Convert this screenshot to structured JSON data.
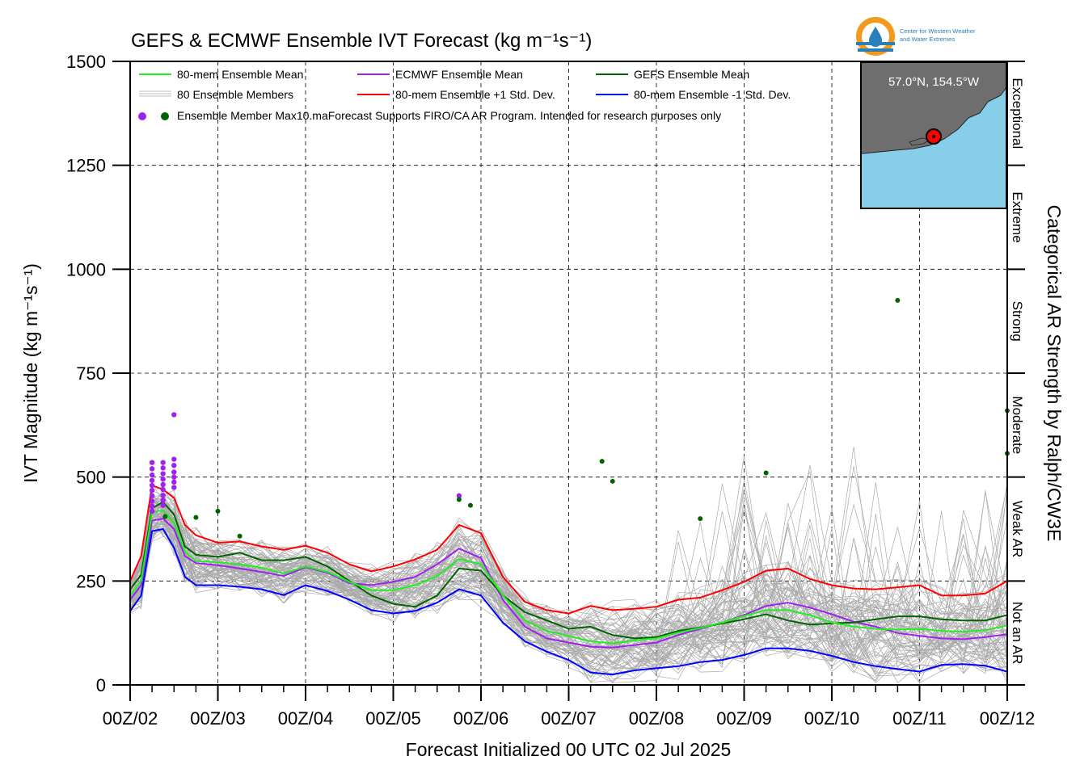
{
  "colors": {
    "ensemble_mean": "#22ee22",
    "ecmwf_mean": "#a020f0",
    "gefs_mean": "#006400",
    "plus_std": "#ff0000",
    "minus_std": "#0000ff",
    "members": "#aaaaaa",
    "gefs_max": "#006400",
    "ecmwf_max": "#a020f0",
    "ocean": "#87ceeb",
    "land": "#6e6e6e",
    "logo_orange": "#f39a1e",
    "logo_blue": "#2a7fb8"
  },
  "chart_data": {
    "type": "line",
    "title": "GEFS & ECMWF Ensemble IVT Forecast (kg m⁻¹s⁻¹)",
    "xlabel": "Forecast Initialized 00 UTC 02 Jul 2025",
    "ylabel": "IVT Magnitude (kg m⁻¹s⁻¹)",
    "right_ylabel": "Categorical AR Strength by Ralph/CW3E",
    "x_unit": "days since 00Z/02",
    "xlim": [
      0,
      10
    ],
    "ylim": [
      0,
      1500
    ],
    "x_ticks": [
      {
        "x": 0,
        "label": "00Z/02"
      },
      {
        "x": 1,
        "label": "00Z/03"
      },
      {
        "x": 2,
        "label": "00Z/04"
      },
      {
        "x": 3,
        "label": "00Z/05"
      },
      {
        "x": 4,
        "label": "00Z/06"
      },
      {
        "x": 5,
        "label": "00Z/07"
      },
      {
        "x": 6,
        "label": "00Z/08"
      },
      {
        "x": 7,
        "label": "00Z/09"
      },
      {
        "x": 8,
        "label": "00Z/10"
      },
      {
        "x": 9,
        "label": "00Z/11"
      },
      {
        "x": 10,
        "label": "00Z/12"
      }
    ],
    "y_ticks": [
      0,
      250,
      500,
      750,
      1000,
      1250,
      1500
    ],
    "categories": [
      {
        "label": "Not an AR",
        "from": 0,
        "to": 250
      },
      {
        "label": "Weak AR",
        "from": 250,
        "to": 500
      },
      {
        "label": "Moderate",
        "from": 500,
        "to": 750
      },
      {
        "label": "Strong",
        "from": 750,
        "to": 1000
      },
      {
        "label": "Extreme",
        "from": 1000,
        "to": 1250
      },
      {
        "label": "Exceptional",
        "from": 1250,
        "to": 1500
      }
    ],
    "grid": true,
    "legend_position": "top-left",
    "series": [
      {
        "name": "80-mem Ensemble Mean",
        "color_key": "ensemble_mean",
        "points": [
          [
            0,
            215
          ],
          [
            0.125,
            250
          ],
          [
            0.25,
            415
          ],
          [
            0.375,
            420
          ],
          [
            0.5,
            390
          ],
          [
            0.625,
            320
          ],
          [
            0.75,
            298
          ],
          [
            1,
            295
          ],
          [
            1.25,
            290
          ],
          [
            1.5,
            282
          ],
          [
            1.75,
            268
          ],
          [
            2,
            285
          ],
          [
            2.25,
            272
          ],
          [
            2.5,
            248
          ],
          [
            2.75,
            228
          ],
          [
            3,
            228
          ],
          [
            3.25,
            240
          ],
          [
            3.5,
            262
          ],
          [
            3.75,
            303
          ],
          [
            4,
            290
          ],
          [
            4.25,
            215
          ],
          [
            4.5,
            155
          ],
          [
            4.75,
            130
          ],
          [
            5,
            118
          ],
          [
            5.25,
            105
          ],
          [
            5.5,
            100
          ],
          [
            5.75,
            107
          ],
          [
            6,
            112
          ],
          [
            6.25,
            126
          ],
          [
            6.5,
            137
          ],
          [
            6.75,
            150
          ],
          [
            7,
            166
          ],
          [
            7.25,
            180
          ],
          [
            7.5,
            180
          ],
          [
            7.75,
            168
          ],
          [
            8,
            150
          ],
          [
            8.25,
            140
          ],
          [
            8.5,
            135
          ],
          [
            8.75,
            133
          ],
          [
            9,
            135
          ],
          [
            9.25,
            130
          ],
          [
            9.5,
            128
          ],
          [
            9.75,
            132
          ],
          [
            10,
            143
          ]
        ]
      },
      {
        "name": "ECMWF Ensemble Mean",
        "color_key": "ecmwf_mean",
        "points": [
          [
            0,
            205
          ],
          [
            0.125,
            240
          ],
          [
            0.25,
            395
          ],
          [
            0.375,
            400
          ],
          [
            0.5,
            375
          ],
          [
            0.625,
            310
          ],
          [
            0.75,
            293
          ],
          [
            1,
            288
          ],
          [
            1.25,
            280
          ],
          [
            1.5,
            272
          ],
          [
            1.75,
            262
          ],
          [
            2,
            283
          ],
          [
            2.25,
            270
          ],
          [
            2.5,
            245
          ],
          [
            2.75,
            240
          ],
          [
            3,
            248
          ],
          [
            3.25,
            260
          ],
          [
            3.5,
            290
          ],
          [
            3.75,
            328
          ],
          [
            4,
            305
          ],
          [
            4.25,
            205
          ],
          [
            4.5,
            140
          ],
          [
            4.75,
            112
          ],
          [
            5,
            102
          ],
          [
            5.25,
            92
          ],
          [
            5.5,
            90
          ],
          [
            5.75,
            96
          ],
          [
            6,
            102
          ],
          [
            6.25,
            120
          ],
          [
            6.5,
            135
          ],
          [
            6.75,
            150
          ],
          [
            7,
            168
          ],
          [
            7.25,
            190
          ],
          [
            7.5,
            198
          ],
          [
            7.75,
            186
          ],
          [
            8,
            170
          ],
          [
            8.25,
            152
          ],
          [
            8.5,
            140
          ],
          [
            8.75,
            125
          ],
          [
            9,
            118
          ],
          [
            9.25,
            112
          ],
          [
            9.5,
            110
          ],
          [
            9.75,
            115
          ],
          [
            10,
            122
          ]
        ]
      },
      {
        "name": "GEFS Ensemble Mean",
        "color_key": "gefs_mean",
        "points": [
          [
            0,
            230
          ],
          [
            0.125,
            265
          ],
          [
            0.25,
            425
          ],
          [
            0.375,
            440
          ],
          [
            0.5,
            410
          ],
          [
            0.625,
            333
          ],
          [
            0.75,
            313
          ],
          [
            1,
            308
          ],
          [
            1.25,
            318
          ],
          [
            1.5,
            300
          ],
          [
            1.75,
            300
          ],
          [
            2,
            308
          ],
          [
            2.25,
            285
          ],
          [
            2.5,
            250
          ],
          [
            2.75,
            215
          ],
          [
            3,
            195
          ],
          [
            3.25,
            188
          ],
          [
            3.5,
            215
          ],
          [
            3.75,
            280
          ],
          [
            4,
            275
          ],
          [
            4.25,
            215
          ],
          [
            4.5,
            175
          ],
          [
            4.75,
            155
          ],
          [
            5,
            135
          ],
          [
            5.25,
            140
          ],
          [
            5.5,
            120
          ],
          [
            5.75,
            112
          ],
          [
            6,
            115
          ],
          [
            6.25,
            130
          ],
          [
            6.5,
            138
          ],
          [
            6.75,
            148
          ],
          [
            7,
            158
          ],
          [
            7.25,
            170
          ],
          [
            7.5,
            155
          ],
          [
            7.75,
            145
          ],
          [
            8,
            148
          ],
          [
            8.25,
            150
          ],
          [
            8.5,
            158
          ],
          [
            8.75,
            165
          ],
          [
            9,
            165
          ],
          [
            9.25,
            158
          ],
          [
            9.5,
            155
          ],
          [
            9.75,
            155
          ],
          [
            10,
            168
          ]
        ]
      },
      {
        "name": "80-mem Ensemble +1 Std. Dev.",
        "color_key": "plus_std",
        "points": [
          [
            0,
            250
          ],
          [
            0.125,
            310
          ],
          [
            0.25,
            480
          ],
          [
            0.375,
            470
          ],
          [
            0.5,
            450
          ],
          [
            0.625,
            385
          ],
          [
            0.75,
            360
          ],
          [
            1,
            342
          ],
          [
            1.25,
            345
          ],
          [
            1.5,
            333
          ],
          [
            1.75,
            325
          ],
          [
            2,
            335
          ],
          [
            2.25,
            318
          ],
          [
            2.5,
            290
          ],
          [
            2.75,
            273
          ],
          [
            3,
            285
          ],
          [
            3.25,
            302
          ],
          [
            3.5,
            325
          ],
          [
            3.75,
            385
          ],
          [
            4,
            365
          ],
          [
            4.25,
            260
          ],
          [
            4.5,
            200
          ],
          [
            4.75,
            180
          ],
          [
            5,
            172
          ],
          [
            5.25,
            190
          ],
          [
            5.5,
            180
          ],
          [
            5.75,
            183
          ],
          [
            6,
            188
          ],
          [
            6.25,
            205
          ],
          [
            6.5,
            210
          ],
          [
            6.75,
            228
          ],
          [
            7,
            248
          ],
          [
            7.25,
            275
          ],
          [
            7.5,
            280
          ],
          [
            7.75,
            255
          ],
          [
            8,
            240
          ],
          [
            8.25,
            232
          ],
          [
            8.5,
            230
          ],
          [
            8.75,
            235
          ],
          [
            9,
            240
          ],
          [
            9.25,
            215
          ],
          [
            9.5,
            215
          ],
          [
            9.75,
            220
          ],
          [
            10,
            250
          ]
        ]
      },
      {
        "name": "80-mem Ensemble -1 Std. Dev.",
        "color_key": "minus_std",
        "points": [
          [
            0,
            178
          ],
          [
            0.125,
            215
          ],
          [
            0.25,
            370
          ],
          [
            0.375,
            375
          ],
          [
            0.5,
            330
          ],
          [
            0.625,
            260
          ],
          [
            0.75,
            240
          ],
          [
            1,
            240
          ],
          [
            1.25,
            236
          ],
          [
            1.5,
            230
          ],
          [
            1.75,
            216
          ],
          [
            2,
            240
          ],
          [
            2.25,
            226
          ],
          [
            2.5,
            205
          ],
          [
            2.75,
            180
          ],
          [
            3,
            172
          ],
          [
            3.25,
            178
          ],
          [
            3.5,
            198
          ],
          [
            3.75,
            230
          ],
          [
            4,
            215
          ],
          [
            4.25,
            150
          ],
          [
            4.5,
            105
          ],
          [
            4.75,
            80
          ],
          [
            5,
            60
          ],
          [
            5.25,
            30
          ],
          [
            5.5,
            25
          ],
          [
            5.75,
            35
          ],
          [
            6,
            40
          ],
          [
            6.25,
            45
          ],
          [
            6.5,
            55
          ],
          [
            6.75,
            60
          ],
          [
            7,
            72
          ],
          [
            7.25,
            88
          ],
          [
            7.5,
            88
          ],
          [
            7.75,
            82
          ],
          [
            8,
            70
          ],
          [
            8.25,
            55
          ],
          [
            8.5,
            45
          ],
          [
            8.75,
            38
          ],
          [
            9,
            32
          ],
          [
            9.25,
            48
          ],
          [
            9.5,
            50
          ],
          [
            9.75,
            46
          ],
          [
            10,
            32
          ]
        ]
      }
    ],
    "gefs_member_max_points": [
      [
        0.4,
        405
      ],
      [
        0.75,
        403
      ],
      [
        1.0,
        418
      ],
      [
        1.25,
        358
      ],
      [
        3.75,
        446
      ],
      [
        3.88,
        432
      ],
      [
        5.38,
        538
      ],
      [
        5.5,
        490
      ],
      [
        6.5,
        400
      ],
      [
        7.25,
        510
      ],
      [
        8.75,
        925
      ],
      [
        10,
        660
      ],
      [
        10,
        557
      ]
    ],
    "ecmwf_member_max_points": [
      [
        0.25,
        535
      ],
      [
        0.25,
        520
      ],
      [
        0.25,
        505
      ],
      [
        0.25,
        492
      ],
      [
        0.25,
        480
      ],
      [
        0.25,
        468
      ],
      [
        0.25,
        455
      ],
      [
        0.25,
        442
      ],
      [
        0.25,
        430
      ],
      [
        0.25,
        418
      ],
      [
        0.375,
        535
      ],
      [
        0.375,
        522
      ],
      [
        0.375,
        508
      ],
      [
        0.375,
        495
      ],
      [
        0.375,
        482
      ],
      [
        0.375,
        470
      ],
      [
        0.375,
        456
      ],
      [
        0.375,
        444
      ],
      [
        0.375,
        432
      ],
      [
        0.5,
        650
      ],
      [
        0.5,
        543
      ],
      [
        0.5,
        528
      ],
      [
        0.5,
        512
      ],
      [
        0.5,
        500
      ],
      [
        0.5,
        488
      ],
      [
        0.5,
        475
      ],
      [
        3.75,
        455
      ]
    ]
  },
  "legend": [
    {
      "label": "80-mem Ensemble Mean",
      "color_key": "ensemble_mean"
    },
    {
      "label": "ECMWF Ensemble Mean",
      "color_key": "ecmwf_mean"
    },
    {
      "label": "GEFS Ensemble Mean",
      "color_key": "gefs_mean"
    },
    {
      "label": "80 Ensemble Members",
      "color_key": "members"
    },
    {
      "label": "80-mem Ensemble +1 Std. Dev.",
      "color_key": "plus_std"
    },
    {
      "label": "80-mem Ensemble -1 Std. Dev.",
      "color_key": "minus_std"
    }
  ],
  "legend_max_label": "Ensemble Member Max",
  "disclaimer": "10.maForecast Supports FIRO/CA AR Program. Intended for research purposes only",
  "inset": {
    "location_label": "57.0°N, 154.5°W"
  },
  "logo": {
    "line1": "Center for Western Weather",
    "line2": "and Water Extremes"
  }
}
